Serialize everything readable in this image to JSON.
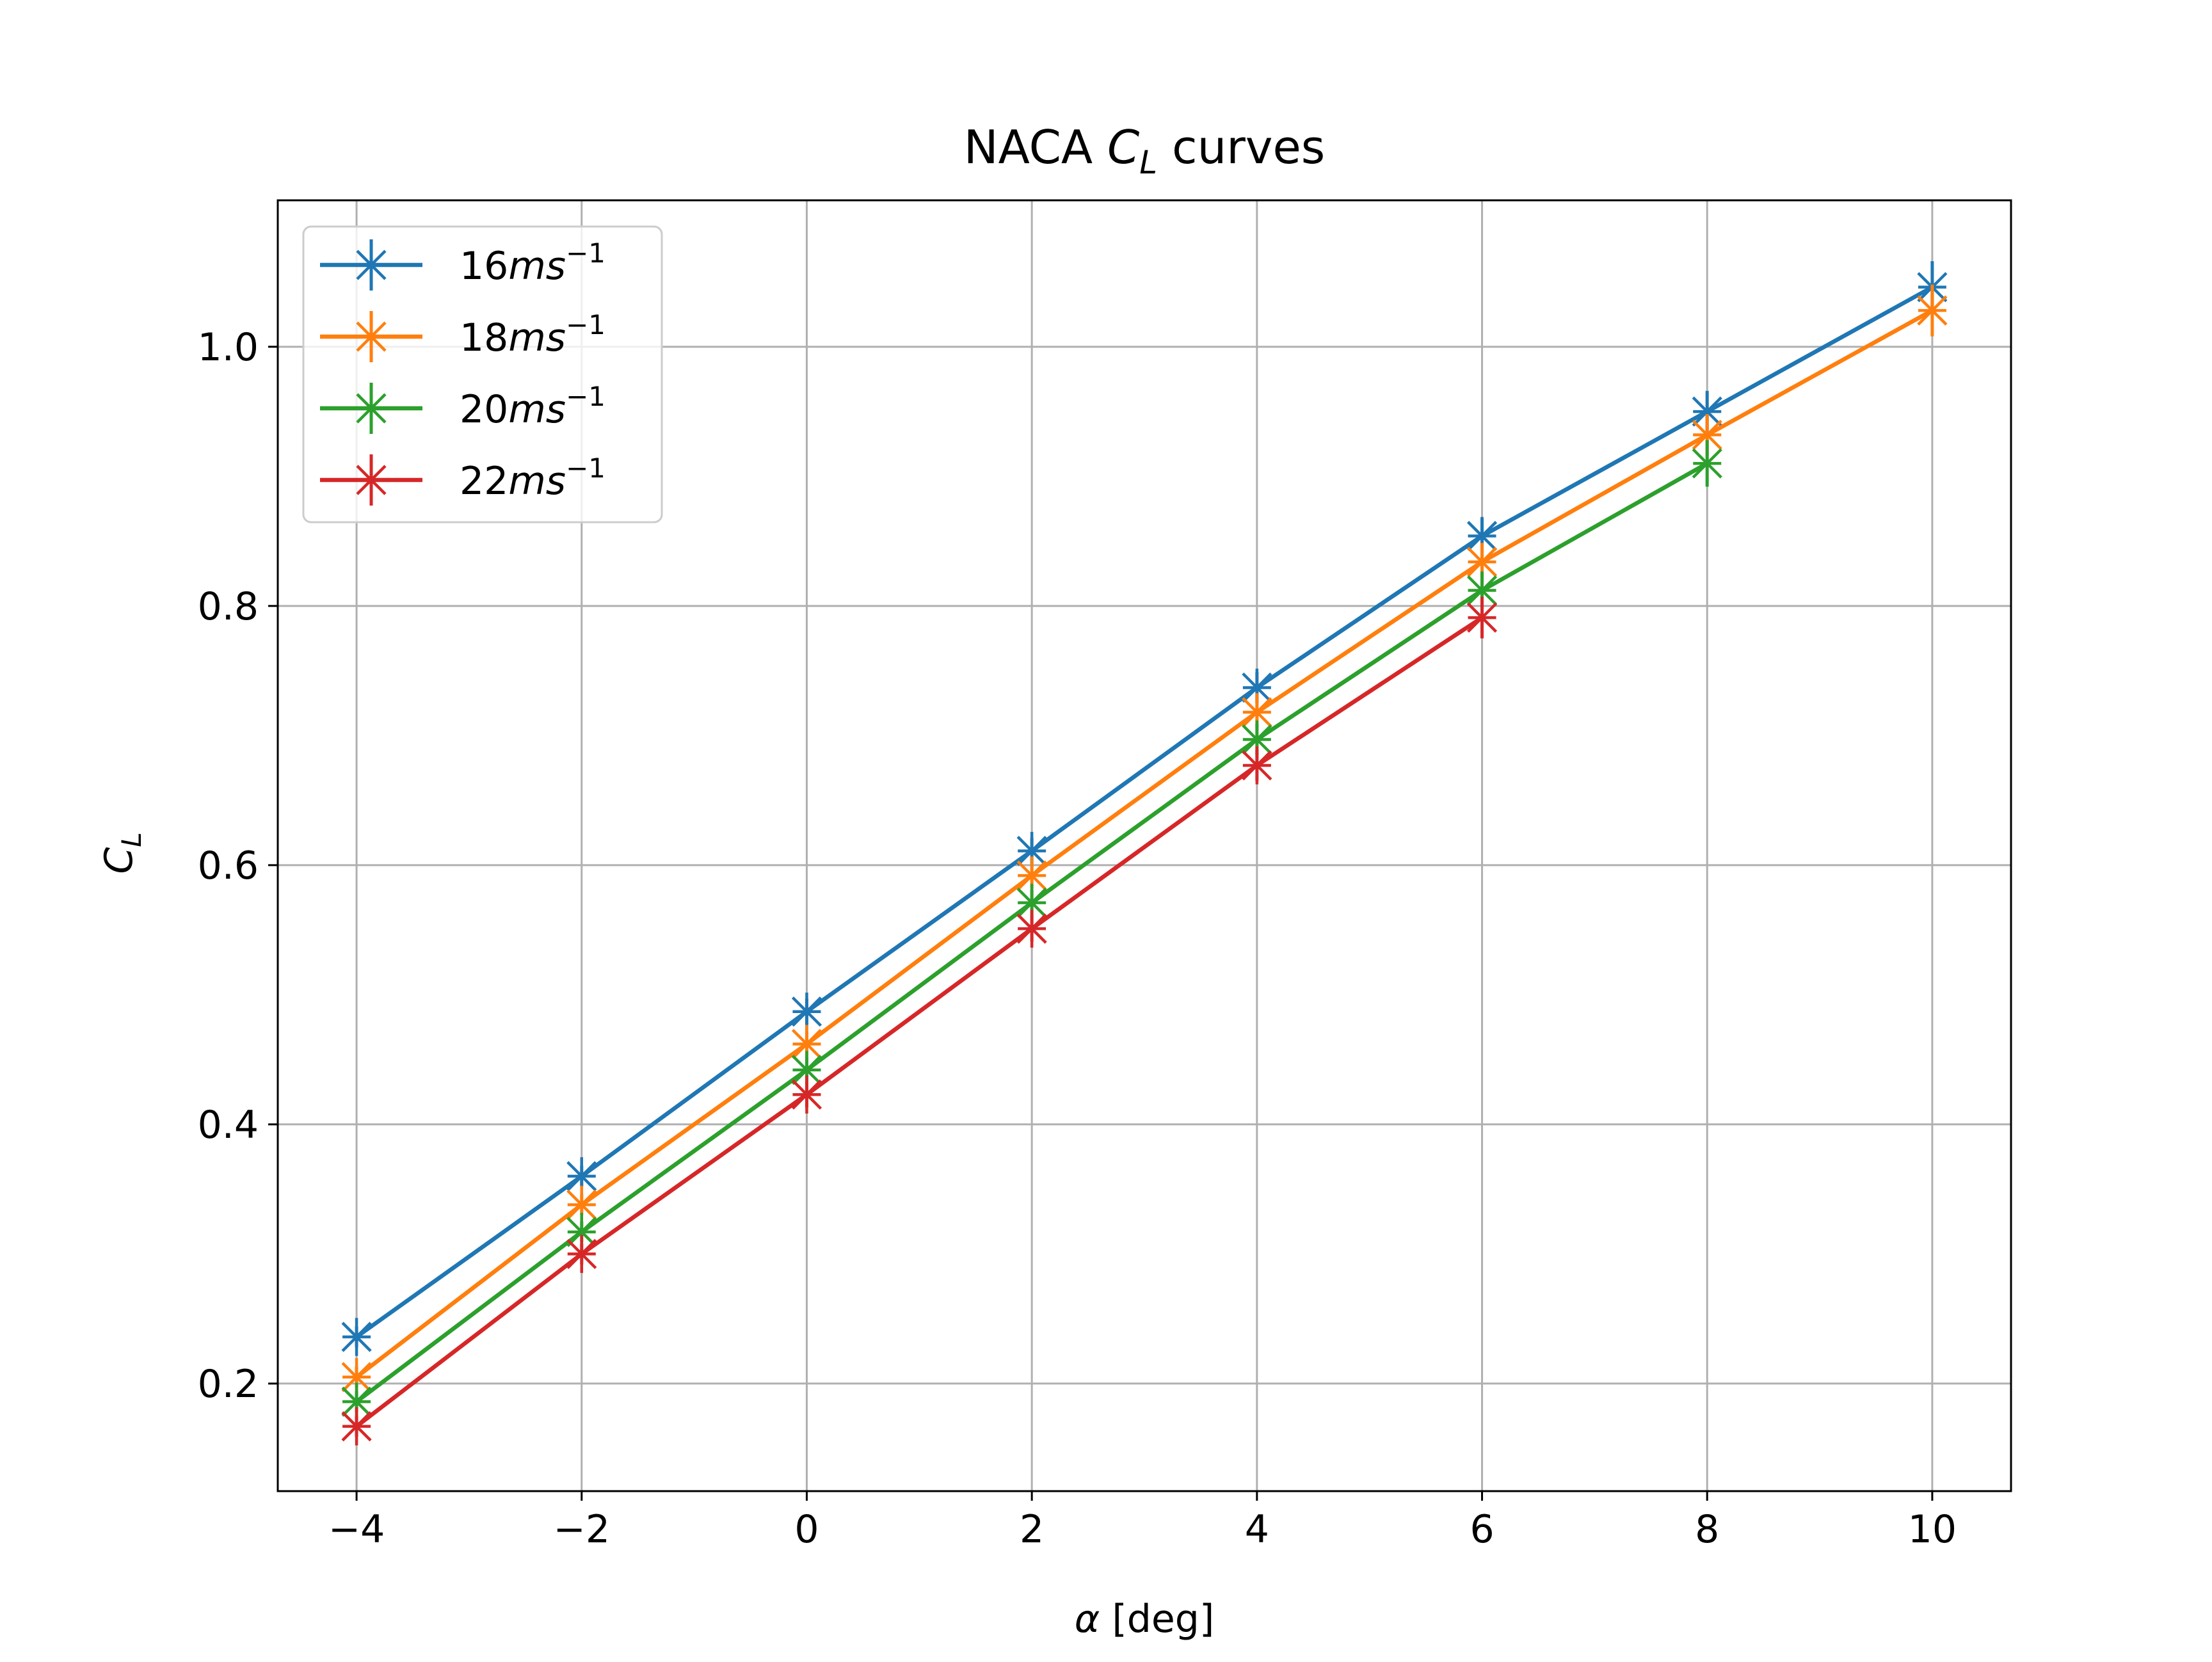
{
  "chart_data": {
    "type": "line",
    "title": {
      "prefix": "NACA ",
      "symbol": "C",
      "subscript": "L",
      "suffix": " curves"
    },
    "xlabel": {
      "symbol": "α",
      "rest": " [deg]"
    },
    "ylabel": {
      "symbol": "C",
      "subscript": "L"
    },
    "xlim": [
      -4.7,
      10.7
    ],
    "ylim": [
      0.117,
      1.113
    ],
    "xticks": [
      -4,
      -2,
      0,
      2,
      4,
      6,
      8,
      10
    ],
    "xtick_labels": [
      "−4",
      "−2",
      "0",
      "2",
      "4",
      "6",
      "8",
      "10"
    ],
    "yticks": [
      0.2,
      0.4,
      0.6,
      0.8,
      1.0
    ],
    "ytick_labels": [
      "0.2",
      "0.4",
      "0.6",
      "0.8",
      "1.0"
    ],
    "grid": true,
    "legend_position": "upper-left",
    "marker": "x-plus",
    "series": [
      {
        "label": {
          "num": "16",
          "unit": "ms",
          "exp": "−1"
        },
        "color": "#1f77b4",
        "x": [
          -4,
          -2,
          0,
          2,
          4,
          6,
          8,
          10
        ],
        "y": [
          0.236,
          0.36,
          0.487,
          0.611,
          0.737,
          0.854,
          0.95,
          1.046
        ],
        "err": [
          0.008,
          0.008,
          0.01,
          0.01,
          0.012,
          0.014,
          0.016,
          0.02
        ]
      },
      {
        "label": {
          "num": "18",
          "unit": "ms",
          "exp": "−1"
        },
        "color": "#ff7f0e",
        "x": [
          -4,
          -2,
          0,
          2,
          4,
          6,
          8,
          10
        ],
        "y": [
          0.205,
          0.338,
          0.462,
          0.592,
          0.718,
          0.834,
          0.932,
          1.028
        ],
        "err": [
          0.008,
          0.008,
          0.01,
          0.01,
          0.012,
          0.014,
          0.016,
          0.02
        ]
      },
      {
        "label": {
          "num": "20",
          "unit": "ms",
          "exp": "−1"
        },
        "color": "#2ca02c",
        "x": [
          -4,
          -2,
          0,
          2,
          4,
          6,
          8
        ],
        "y": [
          0.186,
          0.317,
          0.442,
          0.571,
          0.697,
          0.812,
          0.91
        ],
        "err": [
          0.008,
          0.008,
          0.01,
          0.01,
          0.012,
          0.014,
          0.018
        ]
      },
      {
        "label": {
          "num": "22",
          "unit": "ms",
          "exp": "−1"
        },
        "color": "#d62728",
        "x": [
          -4,
          -2,
          0,
          2,
          4,
          6
        ],
        "y": [
          0.167,
          0.3,
          0.423,
          0.551,
          0.677,
          0.791
        ],
        "err": [
          0.008,
          0.008,
          0.01,
          0.01,
          0.012,
          0.016
        ]
      }
    ]
  }
}
